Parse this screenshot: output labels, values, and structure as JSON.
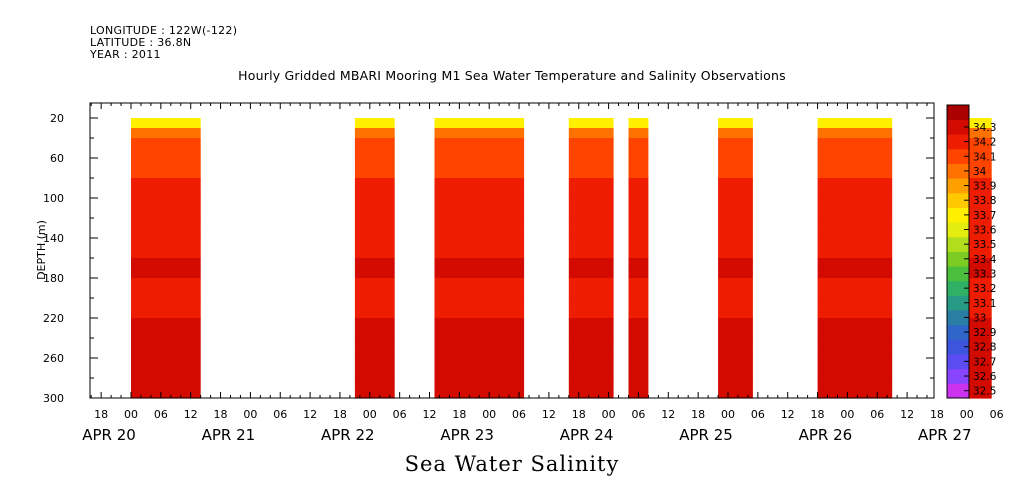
{
  "header": {
    "longitude": "LONGITUDE : 122W(-122)",
    "latitude": "LATITUDE : 36.8N",
    "year": "YEAR : 2011"
  },
  "plot_title": "Hourly Gridded MBARI Mooring M1 Sea Water Temperature and Salinity Observations",
  "footer_title": "Sea Water Salinity",
  "chart_data": {
    "type": "heatmap",
    "title": "Hourly Gridded MBARI Mooring M1 Sea Water Temperature and Salinity Observations",
    "variable": "Sea Water Salinity",
    "xlabel": "",
    "ylabel": "DEPTH (m)",
    "x_hour_ticks": [
      "18",
      "00",
      "06",
      "12",
      "18",
      "00",
      "06",
      "12",
      "18",
      "00",
      "06",
      "12",
      "18",
      "00",
      "06",
      "12",
      "18",
      "00",
      "06",
      "12",
      "18",
      "00",
      "06",
      "12",
      "18",
      "00",
      "06",
      "12",
      "18",
      "00",
      "06",
      "12"
    ],
    "x_date_labels": [
      "APR 20",
      "APR 21",
      "APR 22",
      "APR 23",
      "APR 24",
      "APR 25",
      "APR 26",
      "APR 27"
    ],
    "y_ticks": [
      20,
      60,
      100,
      140,
      180,
      220,
      260,
      300
    ],
    "ylim": [
      300,
      5
    ],
    "y_inverted": true,
    "colorbar": {
      "levels": [
        32.5,
        32.6,
        32.7,
        32.8,
        32.9,
        33,
        33.1,
        33.2,
        33.3,
        33.4,
        33.5,
        33.6,
        33.7,
        33.8,
        33.9,
        34,
        34.1,
        34.2,
        34.3
      ],
      "colors": [
        "#cc33ee",
        "#8844ff",
        "#5b4cf2",
        "#3d55dd",
        "#2f66c8",
        "#2a7ea4",
        "#279a86",
        "#2fb064",
        "#4cbf3e",
        "#7ccc22",
        "#b0dd1c",
        "#e3ee10",
        "#fff000",
        "#ffc800",
        "#ffa000",
        "#ff7200",
        "#ff4400",
        "#ee1c00",
        "#d30a00",
        "#aa0000"
      ]
    },
    "data_segments": [
      {
        "start": "APR 20 00:00",
        "end": "APR 20 14:00"
      },
      {
        "start": "APR 21 21:00",
        "end": "APR 22 05:00"
      },
      {
        "start": "APR 22 13:00",
        "end": "APR 23 07:00"
      },
      {
        "start": "APR 23 16:00",
        "end": "APR 24 01:00"
      },
      {
        "start": "APR 24 04:00",
        "end": "APR 24 08:00"
      },
      {
        "start": "APR 24 22:00",
        "end": "APR 25 05:00"
      },
      {
        "start": "APR 25 18:00",
        "end": "APR 26 09:00"
      },
      {
        "start": "APR 27 00:00",
        "end": "APR 27 05:00"
      }
    ],
    "profile_depths": [
      20,
      30,
      40,
      50,
      60,
      80,
      100,
      120,
      140,
      160,
      180,
      200,
      220,
      240,
      260,
      280,
      300
    ],
    "profile_salinity": [
      33.65,
      33.9,
      34.0,
      34.05,
      34.08,
      34.1,
      34.12,
      34.15,
      34.18,
      34.2,
      34.19,
      34.18,
      34.2,
      34.22,
      34.25,
      34.24,
      34.22
    ]
  }
}
